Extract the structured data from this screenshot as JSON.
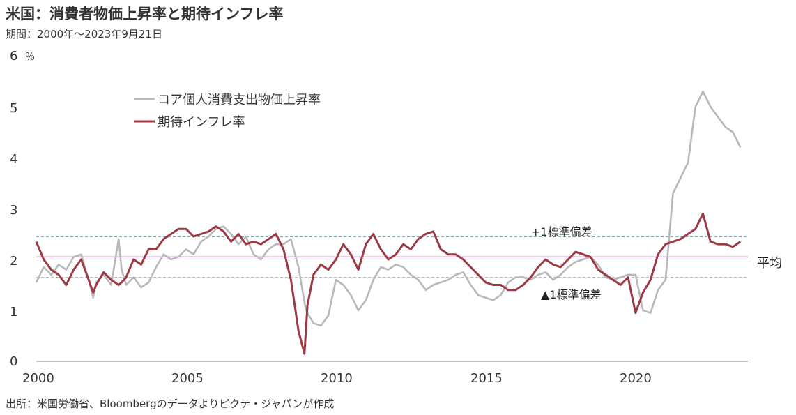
{
  "title": "米国：消費者物価上昇率と期待インフレ率",
  "period": "期間：2000年～2023年9月21日",
  "source": "出所：米国労働省、Bloombergのデータよりピクテ・ジャパンが作成",
  "colors": {
    "core_pce": "#b8b8b8",
    "inflation_expectation": "#9b3a44",
    "mean": "#8a5a8a",
    "plus_sd": "#4a8f99",
    "minus_sd": "#9cc0c7"
  },
  "chart_data": {
    "type": "line",
    "ylabel": "％",
    "ylim": [
      0,
      6
    ],
    "xlim": [
      2000,
      2023.75
    ],
    "y_ticks": [
      "0",
      "1",
      "2",
      "3",
      "4",
      "5",
      "6"
    ],
    "x_ticks": [
      "2000",
      "2005",
      "2010",
      "2015",
      "2020"
    ],
    "legend_position": "top-left",
    "reference_lines": [
      {
        "label": "+1標準偏差",
        "value": 2.45,
        "style": "dashed"
      },
      {
        "label": "平均",
        "value": 2.05,
        "style": "solid"
      },
      {
        "label": "▲1標準偏差",
        "value": 1.65,
        "style": "dashed"
      }
    ],
    "series": [
      {
        "name": "コア個人消費支出物価上昇率",
        "x": [
          2000,
          2000.25,
          2000.5,
          2000.75,
          2001,
          2001.25,
          2001.5,
          2001.75,
          2001.9,
          2002,
          2002.25,
          2002.5,
          2002.75,
          2002.85,
          2003,
          2003.25,
          2003.5,
          2003.75,
          2004,
          2004.25,
          2004.5,
          2004.75,
          2005,
          2005.25,
          2005.5,
          2005.75,
          2006,
          2006.25,
          2006.5,
          2006.75,
          2007,
          2007.25,
          2007.5,
          2007.75,
          2008,
          2008.25,
          2008.5,
          2008.75,
          2009,
          2009.25,
          2009.5,
          2009.75,
          2010,
          2010.25,
          2010.5,
          2010.75,
          2011,
          2011.25,
          2011.5,
          2011.75,
          2012,
          2012.25,
          2012.5,
          2012.75,
          2013,
          2013.25,
          2013.5,
          2013.75,
          2014,
          2014.25,
          2014.5,
          2014.75,
          2015,
          2015.25,
          2015.5,
          2015.75,
          2016,
          2016.25,
          2016.5,
          2016.75,
          2017,
          2017.25,
          2017.5,
          2017.75,
          2018,
          2018.25,
          2018.5,
          2018.75,
          2019,
          2019.25,
          2019.5,
          2019.75,
          2020,
          2020.25,
          2020.5,
          2020.75,
          2021,
          2021.25,
          2021.5,
          2021.75,
          2022,
          2022.25,
          2022.5,
          2022.75,
          2023,
          2023.25,
          2023.5
        ],
        "values": [
          1.55,
          1.85,
          1.7,
          1.9,
          1.8,
          2.05,
          2.1,
          1.6,
          1.25,
          1.55,
          1.7,
          1.5,
          2.4,
          1.8,
          1.5,
          1.65,
          1.45,
          1.55,
          1.85,
          2.1,
          2.0,
          2.05,
          2.2,
          2.1,
          2.35,
          2.45,
          2.6,
          2.65,
          2.5,
          2.3,
          2.45,
          2.1,
          2.0,
          2.2,
          2.3,
          2.3,
          2.4,
          1.85,
          1.0,
          0.75,
          0.7,
          0.9,
          1.6,
          1.5,
          1.3,
          1.0,
          1.2,
          1.6,
          1.85,
          1.8,
          1.9,
          1.85,
          1.7,
          1.6,
          1.4,
          1.5,
          1.55,
          1.6,
          1.7,
          1.75,
          1.5,
          1.3,
          1.25,
          1.2,
          1.3,
          1.55,
          1.65,
          1.65,
          1.6,
          1.7,
          1.75,
          1.6,
          1.7,
          1.85,
          1.95,
          2.0,
          2.05,
          1.9,
          1.65,
          1.6,
          1.65,
          1.7,
          1.7,
          1.0,
          0.95,
          1.4,
          1.6,
          3.3,
          3.6,
          3.9,
          5.0,
          5.3,
          5.0,
          4.8,
          4.6,
          4.5,
          4.2
        ]
      },
      {
        "name": "期待インフレ率",
        "x": [
          2000,
          2000.25,
          2000.5,
          2000.75,
          2001,
          2001.25,
          2001.5,
          2001.75,
          2001.9,
          2002,
          2002.25,
          2002.5,
          2002.75,
          2002.85,
          2003,
          2003.25,
          2003.5,
          2003.75,
          2004,
          2004.25,
          2004.5,
          2004.75,
          2005,
          2005.25,
          2005.5,
          2005.75,
          2006,
          2006.25,
          2006.5,
          2006.75,
          2007,
          2007.25,
          2007.5,
          2007.75,
          2008,
          2008.25,
          2008.5,
          2008.75,
          2008.95,
          2009.05,
          2009.25,
          2009.5,
          2009.75,
          2010,
          2010.25,
          2010.5,
          2010.75,
          2011,
          2011.25,
          2011.5,
          2011.75,
          2012,
          2012.25,
          2012.5,
          2012.75,
          2013,
          2013.25,
          2013.5,
          2013.75,
          2014,
          2014.25,
          2014.5,
          2014.75,
          2015,
          2015.25,
          2015.5,
          2015.75,
          2016,
          2016.25,
          2016.5,
          2016.75,
          2017,
          2017.25,
          2017.5,
          2017.75,
          2018,
          2018.25,
          2018.5,
          2018.75,
          2019,
          2019.25,
          2019.5,
          2019.75,
          2020,
          2020.25,
          2020.5,
          2020.75,
          2021,
          2021.25,
          2021.5,
          2021.75,
          2022,
          2022.25,
          2022.5,
          2022.75,
          2023,
          2023.25,
          2023.5
        ],
        "values": [
          2.35,
          2.0,
          1.8,
          1.7,
          1.5,
          1.8,
          2.0,
          1.6,
          1.35,
          1.5,
          1.75,
          1.6,
          1.5,
          1.55,
          1.65,
          2.0,
          1.9,
          2.2,
          2.2,
          2.4,
          2.5,
          2.6,
          2.6,
          2.45,
          2.5,
          2.55,
          2.65,
          2.55,
          2.35,
          2.5,
          2.3,
          2.35,
          2.3,
          2.4,
          2.5,
          2.2,
          1.6,
          0.6,
          0.15,
          1.1,
          1.7,
          1.9,
          1.8,
          2.0,
          2.3,
          2.1,
          1.8,
          2.3,
          2.5,
          2.2,
          2.0,
          2.1,
          2.3,
          2.2,
          2.4,
          2.5,
          2.55,
          2.2,
          2.1,
          2.1,
          2.0,
          1.85,
          1.7,
          1.55,
          1.5,
          1.5,
          1.4,
          1.4,
          1.5,
          1.65,
          1.85,
          2.0,
          1.9,
          1.85,
          2.0,
          2.15,
          2.1,
          2.05,
          1.8,
          1.7,
          1.6,
          1.5,
          1.65,
          0.95,
          1.35,
          1.6,
          2.1,
          2.3,
          2.35,
          2.4,
          2.5,
          2.6,
          2.9,
          2.35,
          2.3,
          2.3,
          2.25,
          2.35
        ]
      }
    ]
  }
}
